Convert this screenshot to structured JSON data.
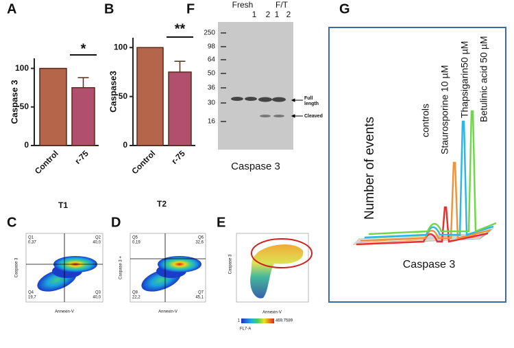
{
  "chart_data": [
    {
      "type": "bar",
      "panel": "A",
      "ylabel": "Caspase 3",
      "xlabel": "T1",
      "categories": [
        "Control",
        "r-75"
      ],
      "values": [
        100,
        75
      ],
      "errors": [
        null,
        13
      ],
      "colors": [
        "#b5654a",
        "#b0506e"
      ],
      "ylim": [
        0,
        113
      ],
      "yticks": [
        0,
        50,
        100
      ],
      "significance": "*"
    },
    {
      "type": "bar",
      "panel": "B",
      "ylabel": "Caspase3",
      "xlabel": "T2",
      "categories": [
        "Control",
        "r-75"
      ],
      "values": [
        100,
        75
      ],
      "errors": [
        null,
        11
      ],
      "colors": [
        "#b5654a",
        "#b0506e"
      ],
      "ylim": [
        0,
        110
      ],
      "yticks": [
        0,
        50,
        100
      ],
      "significance": "**"
    }
  ],
  "blot": {
    "panel": "F",
    "groups": [
      "Fresh",
      "F/T"
    ],
    "lanes": [
      "1",
      "2",
      "1",
      "2"
    ],
    "markers": [
      250,
      98,
      64,
      50,
      36,
      30,
      16
    ],
    "bands": [
      "Full length",
      "Cleaved"
    ],
    "caption": "Caspase 3"
  },
  "flow": [
    {
      "panel": "C",
      "ylabel": "Caspase 3",
      "xlabel": "Annexin-V",
      "quadrants": [
        {
          "name": "Q1",
          "value": "0,37"
        },
        {
          "name": "Q2",
          "value": "40,0"
        },
        {
          "name": "Q4",
          "value": "19,7"
        },
        {
          "name": "Q3",
          "value": "40,0"
        }
      ]
    },
    {
      "panel": "D",
      "ylabel": "Caspase 3 +",
      "xlabel": "Annexin-V",
      "quadrants": [
        {
          "name": "Q5",
          "value": "0,19"
        },
        {
          "name": "Q6",
          "value": "32,6"
        },
        {
          "name": "Q8",
          "value": "22,2"
        },
        {
          "name": "Q7",
          "value": "45,1"
        }
      ]
    }
  ],
  "scatter": {
    "panel": "E",
    "ylabel": "Caspase 3",
    "xlabel": "Annexin-V",
    "scale": [
      "1",
      "469.7589"
    ],
    "scale_label": "FL7-A"
  },
  "histogram": {
    "panel": "G",
    "ylabel": "Number of events",
    "xlabel": "Caspase 3",
    "traces": [
      {
        "name": "controls",
        "color": "#e53030"
      },
      {
        "name": "Staurosporine 10 µM",
        "color": "#f0943a"
      },
      {
        "name": "Thapsigarin50 µM",
        "color": "#2ab8e8"
      },
      {
        "name": "Betulinic acid 50 µM",
        "color": "#6fd84a"
      }
    ]
  }
}
